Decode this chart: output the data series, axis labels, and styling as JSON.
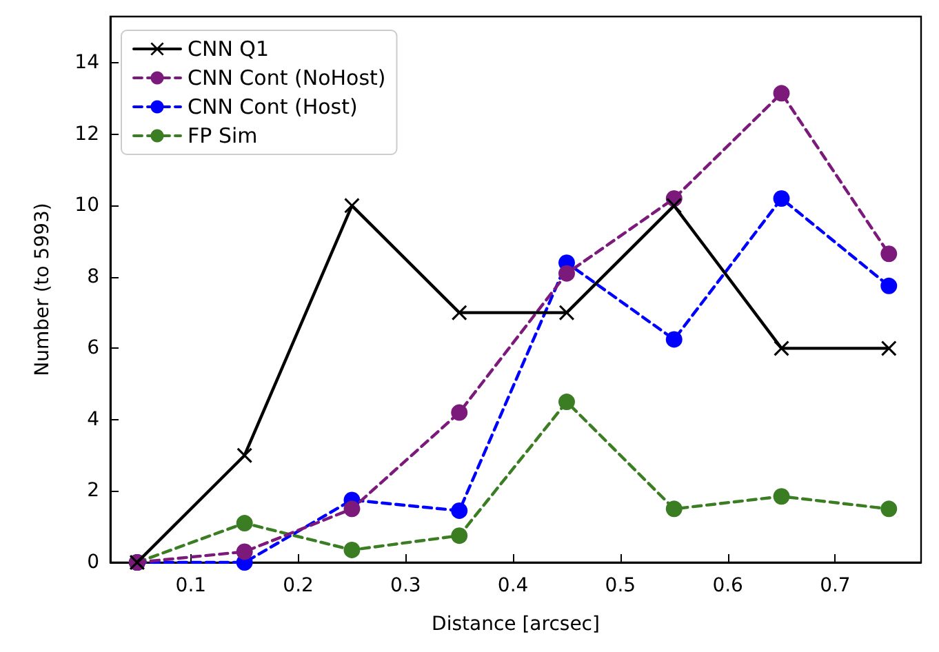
{
  "chart_data": {
    "type": "line",
    "xlabel": "Distance [arcsec]",
    "ylabel": "Number (to 5993)",
    "x": [
      0.05,
      0.15,
      0.25,
      0.35,
      0.45,
      0.55,
      0.65,
      0.75
    ],
    "xlim": [
      0.025,
      0.78
    ],
    "xticks": [
      0.1,
      0.2,
      0.3,
      0.4,
      0.5,
      0.6,
      0.7
    ],
    "ylim": [
      0,
      15.3
    ],
    "yticks": [
      0,
      2,
      4,
      6,
      8,
      10,
      12,
      14
    ],
    "grid": false,
    "legend": "top left",
    "series": [
      {
        "name": "CNN Q1",
        "color": "#000000",
        "marker": "cross",
        "line_style": "solid",
        "values": [
          0,
          3,
          10,
          7,
          7,
          10,
          6,
          6
        ]
      },
      {
        "name": "CNN Cont (NoHost)",
        "color": "#7b1a7b",
        "marker": "circle",
        "line_style": "dashed",
        "values": [
          0,
          0.3,
          1.5,
          4.2,
          8.1,
          10.2,
          13.15,
          8.65
        ]
      },
      {
        "name": "CNN Cont (Host)",
        "color": "#0000ff",
        "marker": "circle",
        "line_style": "dashed",
        "values": [
          0,
          0,
          1.75,
          1.45,
          8.4,
          6.25,
          10.2,
          7.75
        ]
      },
      {
        "name": "FP Sim",
        "color": "#3a7d22",
        "marker": "circle",
        "line_style": "dashed",
        "values": [
          0,
          1.1,
          0.35,
          0.75,
          4.5,
          1.5,
          1.85,
          1.5
        ]
      }
    ]
  }
}
